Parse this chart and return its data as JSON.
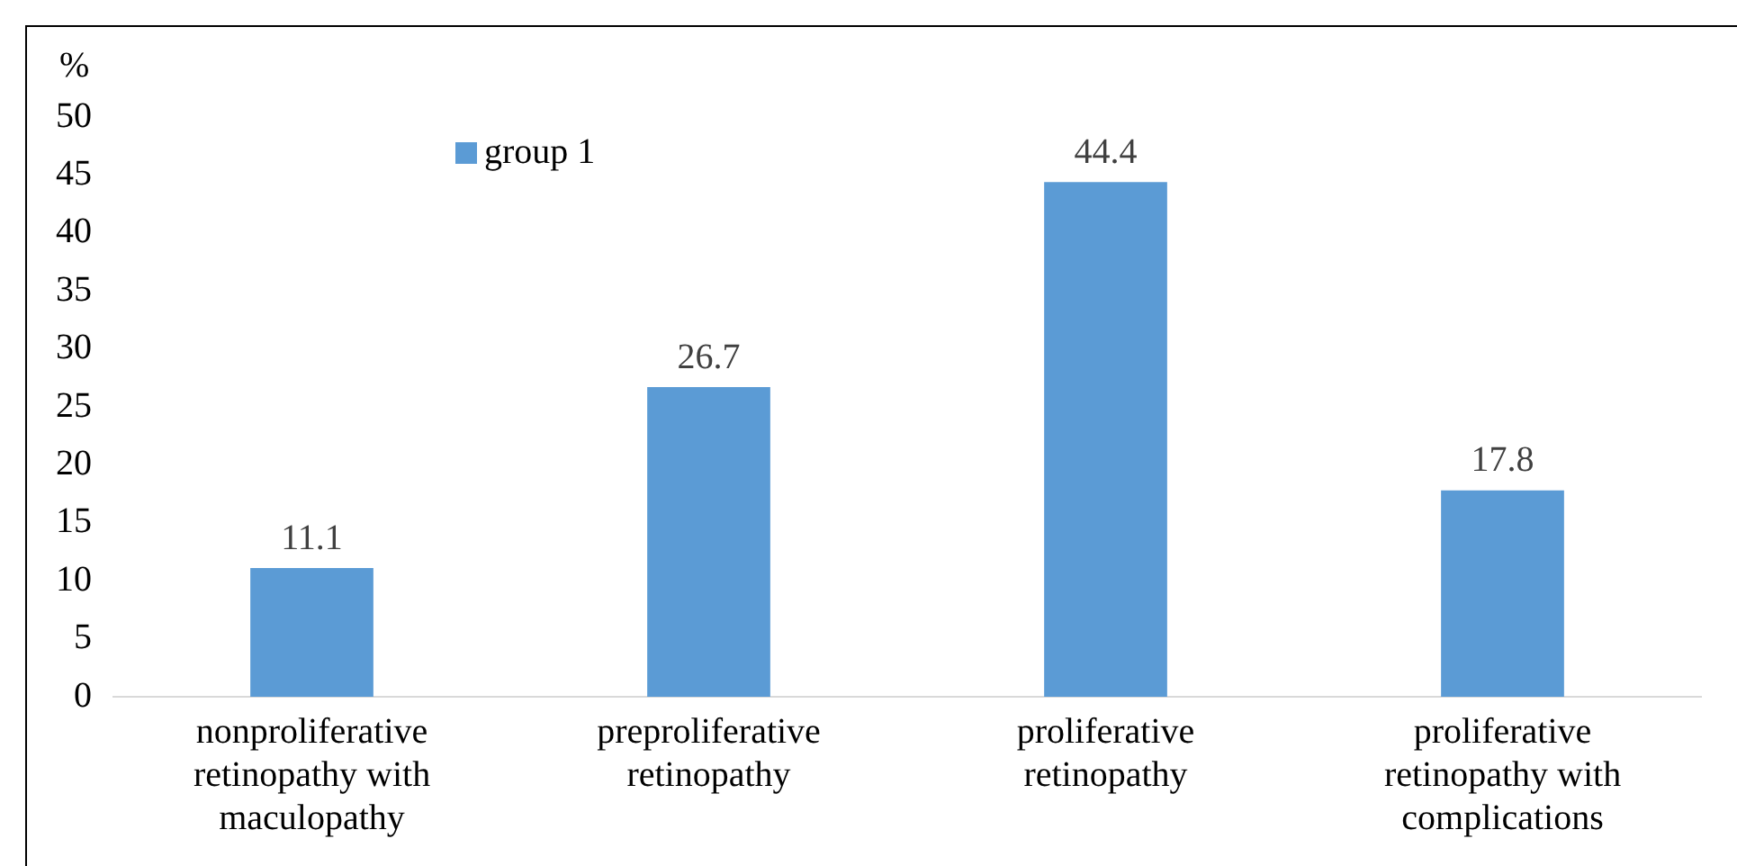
{
  "chart_data": {
    "type": "bar",
    "ylabel": "%",
    "categories": [
      "nonproliferative retinopathy with maculopathy",
      "preproliferative retinopathy",
      "proliferative retinopathy",
      "proliferative retinopathy with complications"
    ],
    "series": [
      {
        "name": "group 1",
        "color": "#5b9bd5",
        "values": [
          11.1,
          26.7,
          44.4,
          17.8
        ]
      }
    ],
    "ylim": [
      0,
      50
    ],
    "yticks": [
      0,
      5,
      10,
      15,
      20,
      25,
      30,
      35,
      40,
      45,
      50
    ],
    "grid": false,
    "legend": "top left",
    "data_labels": true
  }
}
